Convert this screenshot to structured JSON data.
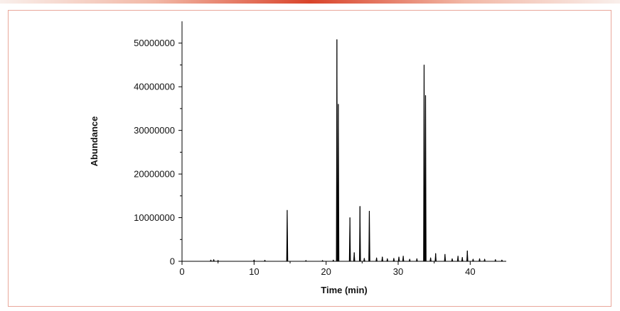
{
  "colors": {
    "accent_bar": "#d9442b",
    "frame_border": "#e9a79a",
    "trace": "#000000"
  },
  "chart_data": {
    "type": "line",
    "title": "",
    "xlabel": "Time (min)",
    "ylabel": "Abundance",
    "xlim": [
      0,
      45
    ],
    "ylim": [
      0,
      55000000
    ],
    "grid": false,
    "x_ticks": [
      0,
      10,
      20,
      30,
      40
    ],
    "x_tick_labels": [
      "0",
      "10",
      "20",
      "30",
      "40"
    ],
    "y_ticks": [
      0,
      10000000,
      20000000,
      30000000,
      40000000,
      50000000
    ],
    "y_tick_labels": [
      "0",
      "10000000",
      "20000000",
      "30000000",
      "40000000",
      "50000000"
    ],
    "baseline_start": 3.0,
    "baseline_end": 45,
    "series": [
      {
        "peaks": [
          {
            "x": 4.0,
            "y": 300000
          },
          {
            "x": 4.4,
            "y": 400000
          },
          {
            "x": 5.0,
            "y": 200000
          },
          {
            "x": 10.0,
            "y": 300000
          },
          {
            "x": 11.5,
            "y": 250000
          },
          {
            "x": 14.6,
            "y": 11700000
          },
          {
            "x": 17.2,
            "y": 200000
          },
          {
            "x": 19.5,
            "y": 200000
          },
          {
            "x": 21.0,
            "y": 300000
          },
          {
            "x": 21.5,
            "y": 50800000
          },
          {
            "x": 21.7,
            "y": 36000000
          },
          {
            "x": 23.3,
            "y": 10000000
          },
          {
            "x": 23.9,
            "y": 2000000
          },
          {
            "x": 24.7,
            "y": 12600000
          },
          {
            "x": 25.3,
            "y": 700000
          },
          {
            "x": 26.0,
            "y": 11500000
          },
          {
            "x": 27.0,
            "y": 800000
          },
          {
            "x": 27.8,
            "y": 1000000
          },
          {
            "x": 28.5,
            "y": 600000
          },
          {
            "x": 29.4,
            "y": 700000
          },
          {
            "x": 30.1,
            "y": 1000000
          },
          {
            "x": 30.7,
            "y": 1200000
          },
          {
            "x": 31.6,
            "y": 500000
          },
          {
            "x": 32.6,
            "y": 600000
          },
          {
            "x": 33.6,
            "y": 45000000
          },
          {
            "x": 33.8,
            "y": 38000000
          },
          {
            "x": 34.5,
            "y": 800000
          },
          {
            "x": 35.2,
            "y": 1800000
          },
          {
            "x": 36.5,
            "y": 1600000
          },
          {
            "x": 37.5,
            "y": 600000
          },
          {
            "x": 38.3,
            "y": 1200000
          },
          {
            "x": 38.9,
            "y": 900000
          },
          {
            "x": 39.6,
            "y": 2400000
          },
          {
            "x": 40.4,
            "y": 500000
          },
          {
            "x": 41.3,
            "y": 600000
          },
          {
            "x": 42.0,
            "y": 500000
          },
          {
            "x": 43.5,
            "y": 400000
          },
          {
            "x": 44.4,
            "y": 300000
          }
        ]
      }
    ]
  }
}
